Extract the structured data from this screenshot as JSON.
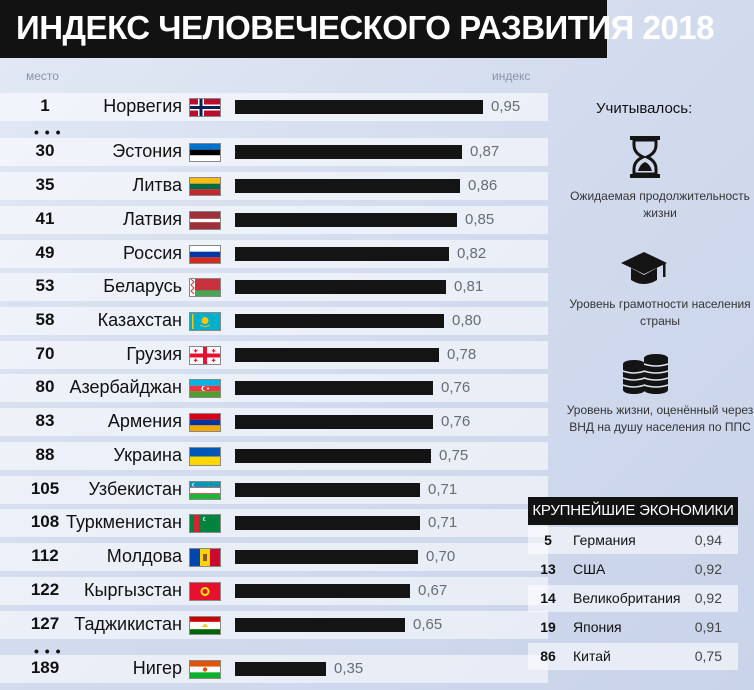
{
  "title": "ИНДЕКС ЧЕЛОВЕЧЕСКОГО РАЗВИТИЯ 2018",
  "headers": {
    "rank": "место",
    "index": "индекс"
  },
  "ellipsis": "• • •",
  "colors": {
    "bar": "#141414",
    "title_bg": "#121212",
    "band": "#ffffff"
  },
  "chart_data": {
    "type": "bar",
    "orientation": "horizontal",
    "title": "ИНДЕКС ЧЕЛОВЕЧЕСКОГО РАЗВИТИЯ 2018",
    "xlim": [
      0,
      1
    ],
    "rows": [
      {
        "rank": "1",
        "country": "Норвегия",
        "flag": "norway",
        "value": 0.95,
        "label": "0,95"
      },
      {
        "rank": "30",
        "country": "Эстония",
        "flag": "estonia",
        "value": 0.87,
        "label": "0,87"
      },
      {
        "rank": "35",
        "country": "Литва",
        "flag": "lithuania",
        "value": 0.86,
        "label": "0,86"
      },
      {
        "rank": "41",
        "country": "Латвия",
        "flag": "latvia",
        "value": 0.85,
        "label": "0,85"
      },
      {
        "rank": "49",
        "country": "Россия",
        "flag": "russia",
        "value": 0.82,
        "label": "0,82"
      },
      {
        "rank": "53",
        "country": "Беларусь",
        "flag": "belarus",
        "value": 0.81,
        "label": "0,81"
      },
      {
        "rank": "58",
        "country": "Казахстан",
        "flag": "kazakhstan",
        "value": 0.8,
        "label": "0,80"
      },
      {
        "rank": "70",
        "country": "Грузия",
        "flag": "georgia",
        "value": 0.78,
        "label": "0,78"
      },
      {
        "rank": "80",
        "country": "Азербайджан",
        "flag": "azerbaijan",
        "value": 0.76,
        "label": "0,76"
      },
      {
        "rank": "83",
        "country": "Армения",
        "flag": "armenia",
        "value": 0.76,
        "label": "0,76"
      },
      {
        "rank": "88",
        "country": "Украина",
        "flag": "ukraine",
        "value": 0.75,
        "label": "0,75"
      },
      {
        "rank": "105",
        "country": "Узбекистан",
        "flag": "uzbekistan",
        "value": 0.71,
        "label": "0,71"
      },
      {
        "rank": "108",
        "country": "Туркменистан",
        "flag": "turkmenistan",
        "value": 0.71,
        "label": "0,71"
      },
      {
        "rank": "112",
        "country": "Молдова",
        "flag": "moldova",
        "value": 0.7,
        "label": "0,70"
      },
      {
        "rank": "122",
        "country": "Кыргызстан",
        "flag": "kyrgyzstan",
        "value": 0.67,
        "label": "0,67"
      },
      {
        "rank": "127",
        "country": "Таджикистан",
        "flag": "tajikistan",
        "value": 0.65,
        "label": "0,65"
      },
      {
        "rank": "189",
        "country": "Нигер",
        "flag": "niger",
        "value": 0.35,
        "label": "0,35"
      }
    ]
  },
  "sidebar": {
    "title": "Учитывалось:",
    "features": [
      {
        "icon": "hourglass-icon",
        "text": "Ожидаемая продолжительность жизни"
      },
      {
        "icon": "graduation-cap-icon",
        "text": "Уровень грамотности населения страны"
      },
      {
        "icon": "coins-icon",
        "text": "Уровень жизни, оценённый через ВНД на душу населения по ППС"
      }
    ]
  },
  "economies": {
    "title": "КРУПНЕЙШИЕ ЭКОНОМИКИ",
    "rows": [
      {
        "rank": "5",
        "country": "Германия",
        "value": "0,94"
      },
      {
        "rank": "13",
        "country": "США",
        "value": "0,92"
      },
      {
        "rank": "14",
        "country": "Великобритания",
        "value": "0,92"
      },
      {
        "rank": "19",
        "country": "Япония",
        "value": "0,91"
      },
      {
        "rank": "86",
        "country": "Китай",
        "value": "0,75"
      }
    ]
  }
}
